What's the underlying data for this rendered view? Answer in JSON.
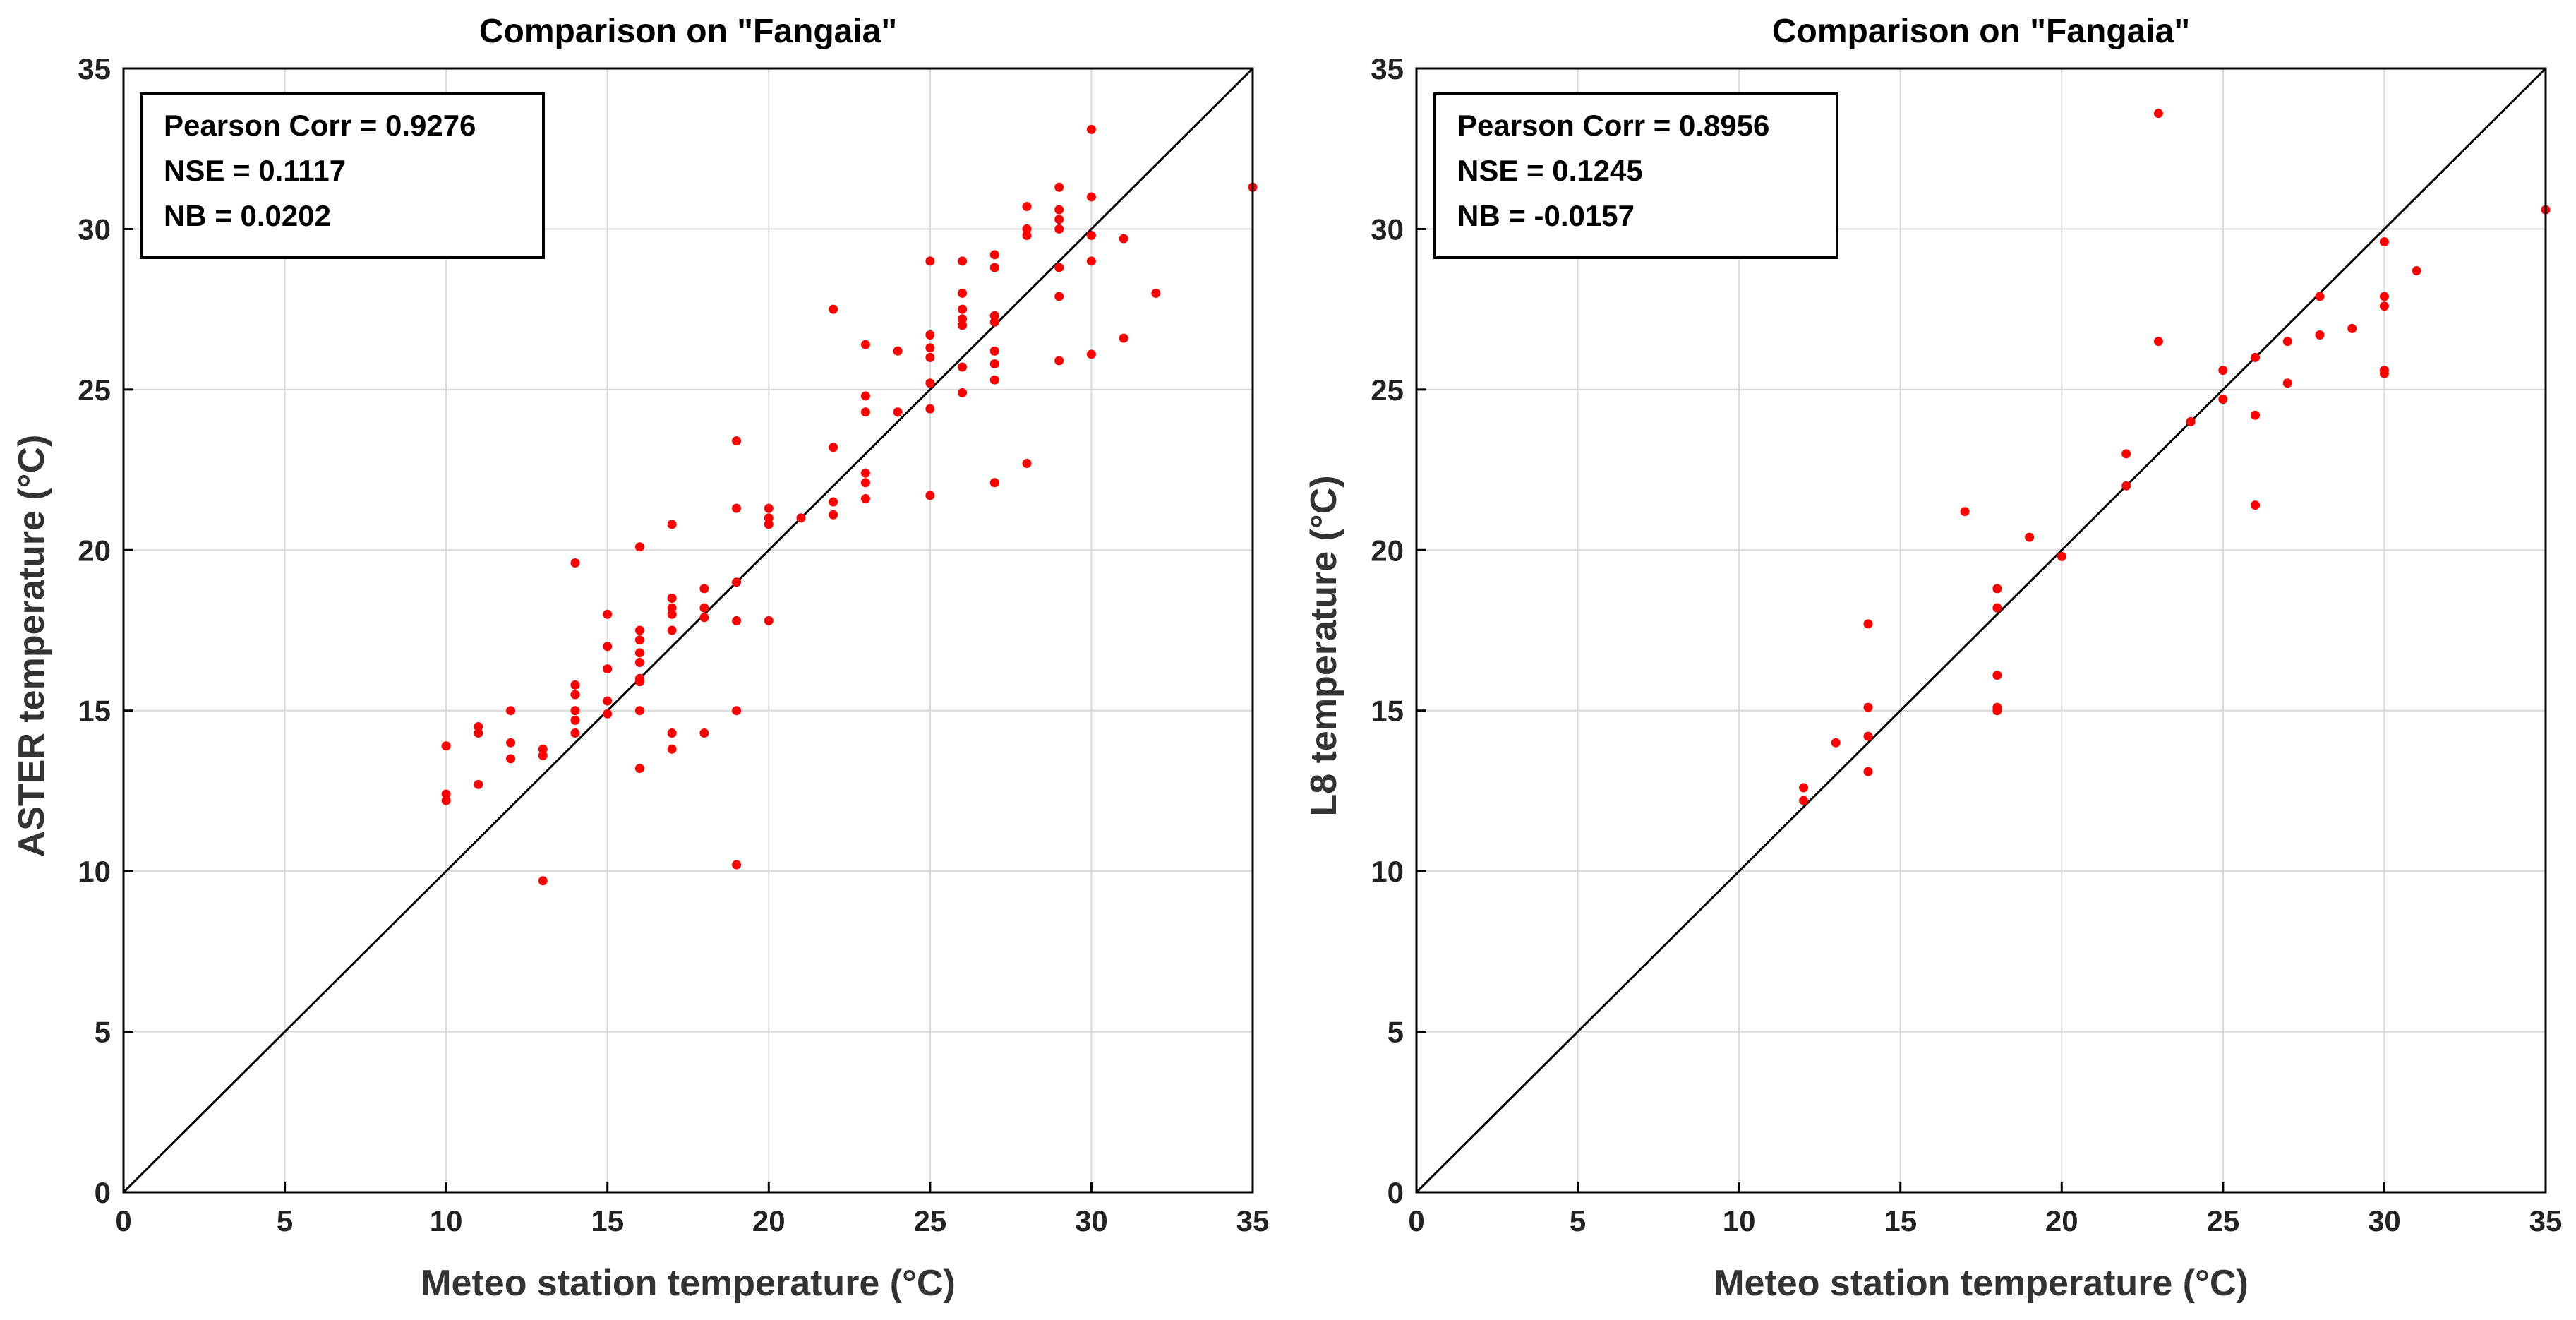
{
  "chart_data": [
    {
      "type": "scatter",
      "title": "Comparison on \"Fangaia\"",
      "xlabel": "Meteo station temperature (°C)",
      "ylabel": "ASTER temperature (°C)",
      "xlim": [
        0,
        35
      ],
      "ylim": [
        0,
        35
      ],
      "xticks": [
        0,
        5,
        10,
        15,
        20,
        25,
        30,
        35
      ],
      "yticks": [
        0,
        5,
        10,
        15,
        20,
        25,
        30,
        35
      ],
      "grid": true,
      "reference_line": "1:1",
      "marker_color": "#ff0000",
      "stats": [
        "Pearson Corr = 0.9276",
        "NSE = 0.1117",
        "NB = 0.0202"
      ],
      "stats_location": "top-left",
      "series": [
        {
          "name": "ASTER",
          "points": [
            [
              10,
              13.9
            ],
            [
              10,
              12.4
            ],
            [
              10,
              12.2
            ],
            [
              11,
              14.5
            ],
            [
              11,
              14.3
            ],
            [
              11,
              12.7
            ],
            [
              12,
              15.0
            ],
            [
              12,
              14.0
            ],
            [
              12,
              13.5
            ],
            [
              13,
              13.8
            ],
            [
              13,
              13.6
            ],
            [
              13,
              9.7
            ],
            [
              14,
              19.6
            ],
            [
              14,
              15.8
            ],
            [
              14,
              15.5
            ],
            [
              14,
              15.0
            ],
            [
              14,
              14.7
            ],
            [
              14,
              14.3
            ],
            [
              15,
              18.0
            ],
            [
              15,
              17.0
            ],
            [
              15,
              16.3
            ],
            [
              15,
              15.3
            ],
            [
              15,
              14.9
            ],
            [
              16,
              20.1
            ],
            [
              16,
              17.5
            ],
            [
              16,
              17.2
            ],
            [
              16,
              16.8
            ],
            [
              16,
              16.5
            ],
            [
              16,
              16.0
            ],
            [
              16,
              15.9
            ],
            [
              16,
              15.0
            ],
            [
              16,
              13.2
            ],
            [
              17,
              20.8
            ],
            [
              17,
              18.5
            ],
            [
              17,
              18.2
            ],
            [
              17,
              18.0
            ],
            [
              17,
              17.5
            ],
            [
              17,
              14.3
            ],
            [
              17,
              13.8
            ],
            [
              18,
              18.8
            ],
            [
              18,
              18.2
            ],
            [
              18,
              17.9
            ],
            [
              18,
              14.3
            ],
            [
              19,
              23.4
            ],
            [
              19,
              21.3
            ],
            [
              19,
              19.0
            ],
            [
              19,
              17.8
            ],
            [
              19,
              15.0
            ],
            [
              19,
              10.2
            ],
            [
              20,
              21.3
            ],
            [
              20,
              21.0
            ],
            [
              20,
              20.8
            ],
            [
              20,
              17.8
            ],
            [
              21,
              21.0
            ],
            [
              22,
              27.5
            ],
            [
              22,
              23.2
            ],
            [
              22,
              21.5
            ],
            [
              22,
              21.1
            ],
            [
              23,
              26.4
            ],
            [
              23,
              24.8
            ],
            [
              23,
              24.3
            ],
            [
              23,
              22.4
            ],
            [
              23,
              22.1
            ],
            [
              23,
              21.6
            ],
            [
              24,
              26.2
            ],
            [
              24,
              24.3
            ],
            [
              25,
              29.0
            ],
            [
              25,
              26.7
            ],
            [
              25,
              26.3
            ],
            [
              25,
              26.0
            ],
            [
              25,
              25.2
            ],
            [
              25,
              24.4
            ],
            [
              25,
              21.7
            ],
            [
              26,
              29.0
            ],
            [
              26,
              28.0
            ],
            [
              26,
              27.5
            ],
            [
              26,
              27.2
            ],
            [
              26,
              27.0
            ],
            [
              26,
              25.7
            ],
            [
              26,
              24.9
            ],
            [
              27,
              29.2
            ],
            [
              27,
              28.8
            ],
            [
              27,
              27.3
            ],
            [
              27,
              27.1
            ],
            [
              27,
              26.2
            ],
            [
              27,
              25.8
            ],
            [
              27,
              25.3
            ],
            [
              27,
              22.1
            ],
            [
              28,
              30.7
            ],
            [
              28,
              30.0
            ],
            [
              28,
              29.8
            ],
            [
              28,
              22.7
            ],
            [
              29,
              31.3
            ],
            [
              29,
              30.6
            ],
            [
              29,
              30.3
            ],
            [
              29,
              30.0
            ],
            [
              29,
              28.8
            ],
            [
              29,
              27.9
            ],
            [
              29,
              25.9
            ],
            [
              30,
              33.1
            ],
            [
              30,
              31.0
            ],
            [
              30,
              29.8
            ],
            [
              30,
              29.0
            ],
            [
              30,
              26.1
            ],
            [
              31,
              29.7
            ],
            [
              31,
              26.6
            ],
            [
              32,
              28.0
            ],
            [
              35,
              31.3
            ]
          ]
        }
      ]
    },
    {
      "type": "scatter",
      "title": "Comparison on \"Fangaia\"",
      "xlabel": "Meteo station temperature (°C)",
      "ylabel": "L8 temperature (°C)",
      "xlim": [
        0,
        35
      ],
      "ylim": [
        0,
        35
      ],
      "xticks": [
        0,
        5,
        10,
        15,
        20,
        25,
        30,
        35
      ],
      "yticks": [
        0,
        5,
        10,
        15,
        20,
        25,
        30,
        35
      ],
      "grid": true,
      "reference_line": "1:1",
      "marker_color": "#ff0000",
      "stats": [
        "Pearson Corr = 0.8956",
        "NSE = 0.1245",
        "NB = -0.0157"
      ],
      "stats_location": "top-left",
      "series": [
        {
          "name": "L8",
          "points": [
            [
              12,
              12.6
            ],
            [
              12,
              12.2
            ],
            [
              13,
              14.0
            ],
            [
              14,
              17.7
            ],
            [
              14,
              15.1
            ],
            [
              14,
              14.2
            ],
            [
              14,
              13.1
            ],
            [
              17,
              21.2
            ],
            [
              18,
              18.8
            ],
            [
              18,
              18.2
            ],
            [
              18,
              16.1
            ],
            [
              18,
              15.1
            ],
            [
              18,
              15.0
            ],
            [
              19,
              20.4
            ],
            [
              20,
              19.8
            ],
            [
              22,
              23.0
            ],
            [
              22,
              22.0
            ],
            [
              23,
              33.6
            ],
            [
              23,
              26.5
            ],
            [
              24,
              24.0
            ],
            [
              25,
              25.6
            ],
            [
              25,
              24.7
            ],
            [
              26,
              26.0
            ],
            [
              26,
              24.2
            ],
            [
              26,
              21.4
            ],
            [
              27,
              26.5
            ],
            [
              27,
              25.2
            ],
            [
              28,
              27.9
            ],
            [
              28,
              26.7
            ],
            [
              29,
              26.9
            ],
            [
              30,
              29.6
            ],
            [
              30,
              27.9
            ],
            [
              30,
              27.6
            ],
            [
              30,
              25.6
            ],
            [
              30,
              25.5
            ],
            [
              31,
              28.7
            ],
            [
              35,
              30.6
            ]
          ]
        }
      ]
    }
  ]
}
